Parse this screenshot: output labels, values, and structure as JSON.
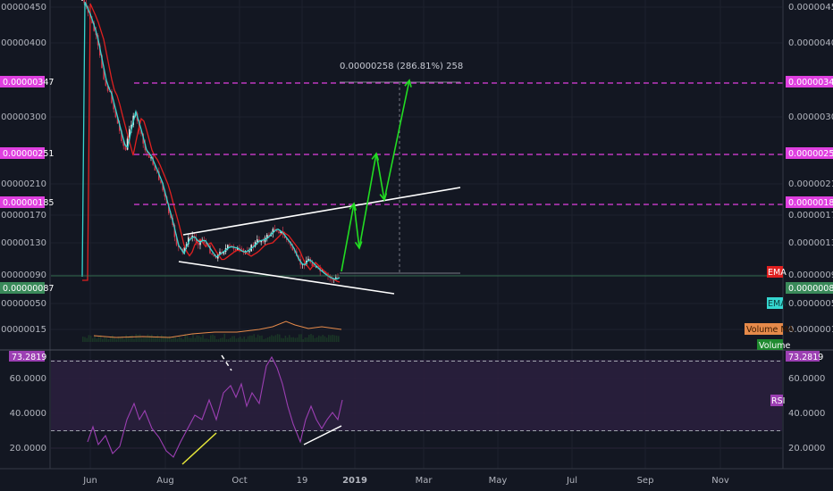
{
  "chart_data": {
    "type": "line",
    "main_pane": {
      "y_ticks": [
        "0.00000450",
        "0.00000400",
        "0.00000300",
        "0.00000210",
        "0.00000170",
        "0.00000130",
        "0.00000090",
        "0.00000050",
        "0.00000015"
      ],
      "price_levels": [
        {
          "label": "0.00000347",
          "value": 347
        },
        {
          "label": "0.00000251",
          "value": 251
        },
        {
          "label": "0.00000185",
          "value": 185
        }
      ],
      "current_price_label": "0.00000087",
      "measure_annotation": "0.00000258 (286.81%) 258",
      "indicator_labels": [
        "EMA",
        "EMA",
        "Volume MA",
        "Volume"
      ]
    },
    "rsi_pane": {
      "y_ticks": [
        "60.0000",
        "40.0000",
        "20.0000"
      ],
      "current_label": "73.2819",
      "indicator_label": "RSI",
      "band_upper": 70,
      "band_lower": 30
    },
    "x_ticks": [
      "Jun",
      "Aug",
      "Oct",
      "19",
      "2019",
      "Mar",
      "May",
      "Jul",
      "Sep",
      "Nov"
    ],
    "colors": {
      "background": "#131722",
      "candle_up": "#e8e8e8",
      "candle_down": "#d1374a",
      "ema_fast": "#35d6d0",
      "ema_slow": "#e02020",
      "volume_ma": "#e68a4a",
      "rsi": "#9c3fb3",
      "level_line": "#e040e0",
      "projection": "#22dd22",
      "trendline": "#ffffff",
      "rsi_trend_yellow": "#e6e63a"
    }
  }
}
